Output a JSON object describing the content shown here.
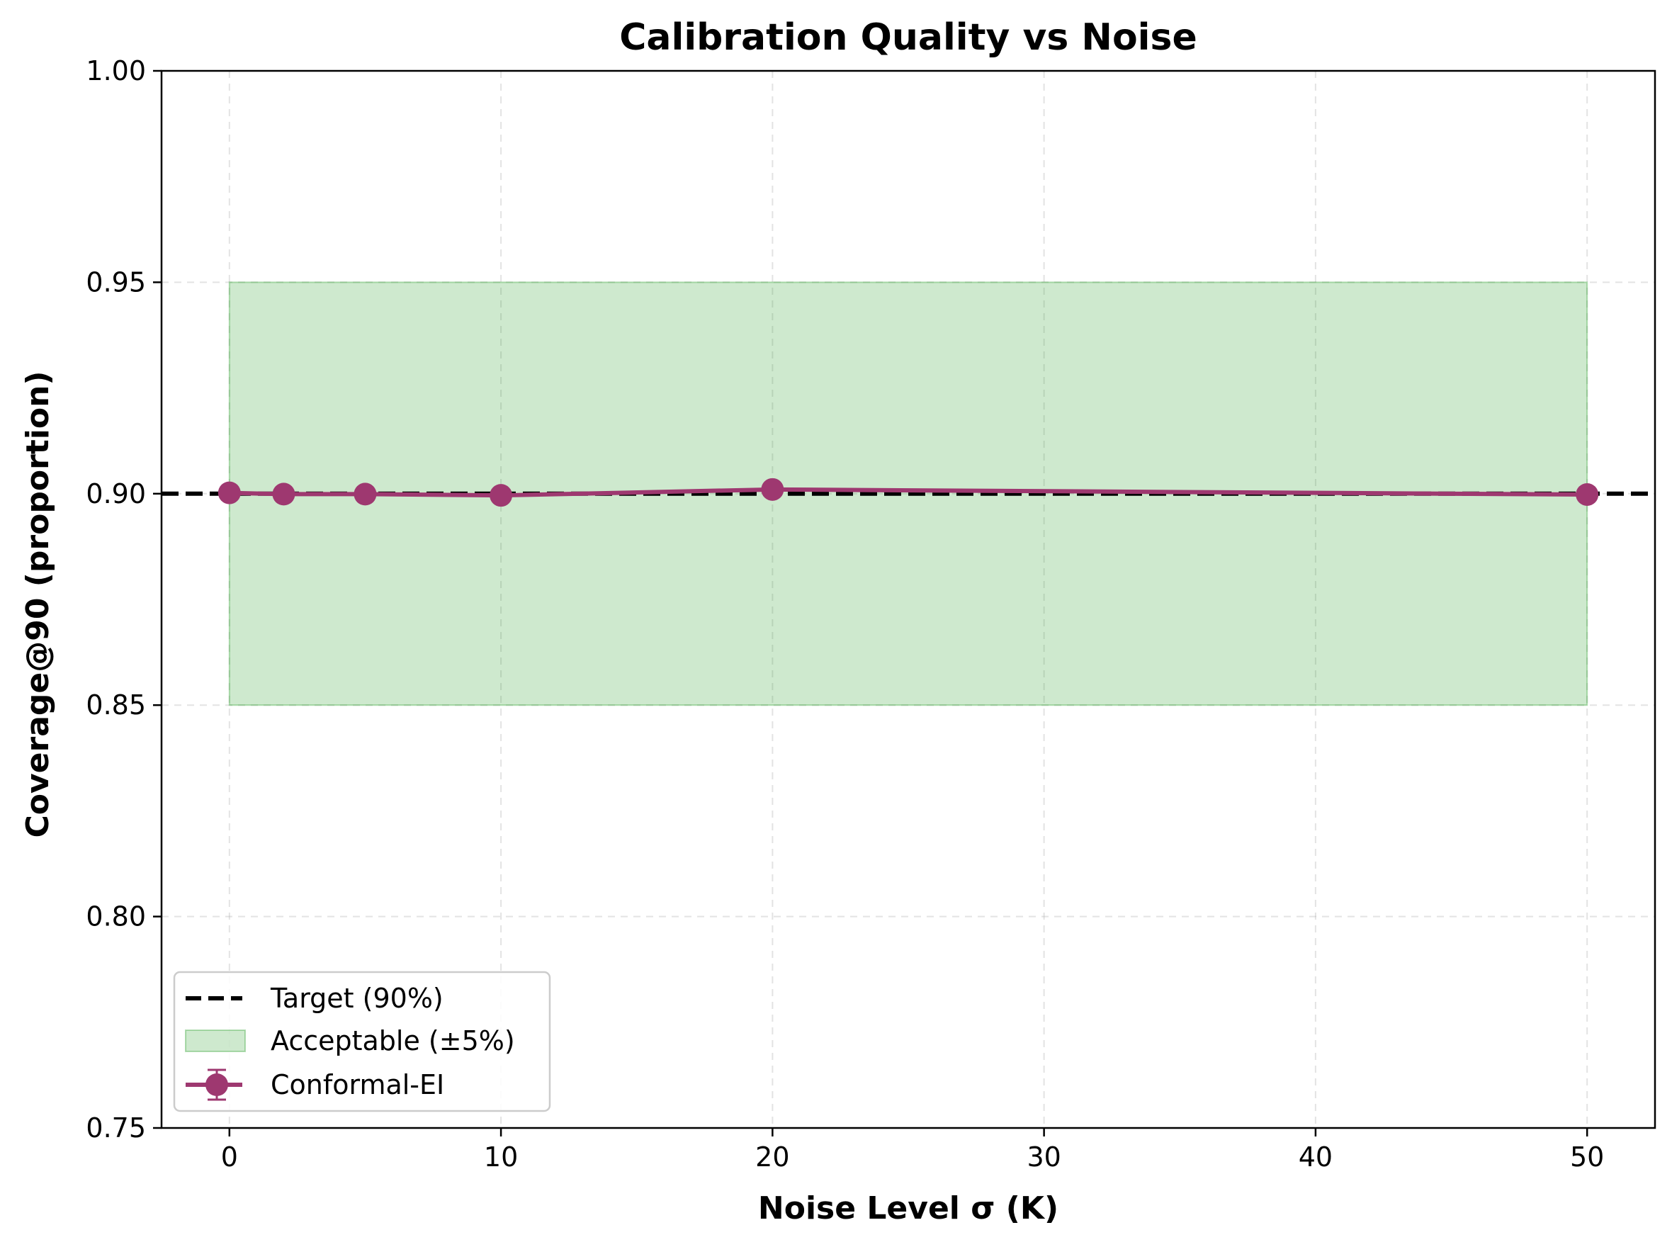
{
  "chart_data": {
    "type": "line",
    "title": "Calibration Quality vs Noise",
    "xlabel": "Noise Level σ (K)",
    "ylabel": "Coverage@90 (proportion)",
    "xlim": [
      -2.5,
      52.5
    ],
    "ylim": [
      0.75,
      1.0
    ],
    "xticks": [
      0,
      10,
      20,
      30,
      40,
      50
    ],
    "yticks": [
      0.75,
      0.8,
      0.85,
      0.9,
      0.95,
      1.0
    ],
    "xtick_labels": [
      "0",
      "10",
      "20",
      "30",
      "40",
      "50"
    ],
    "ytick_labels": [
      "0.75",
      "0.80",
      "0.85",
      "0.90",
      "0.95",
      "1.00"
    ],
    "grid": true,
    "legend_position": "lower-left",
    "target": {
      "name": "Target (90%)",
      "value": 0.9,
      "color": "#000000"
    },
    "band": {
      "name": "Acceptable (±5%)",
      "x": [
        0,
        50
      ],
      "low": 0.85,
      "high": 0.95,
      "color": "#2ca02c"
    },
    "series": [
      {
        "name": "Conformal-EI",
        "color": "#9e3870",
        "x": [
          0,
          2,
          5,
          10,
          20,
          50
        ],
        "y": [
          0.9002,
          0.8999,
          0.8999,
          0.8996,
          0.901,
          0.8998
        ]
      }
    ]
  }
}
